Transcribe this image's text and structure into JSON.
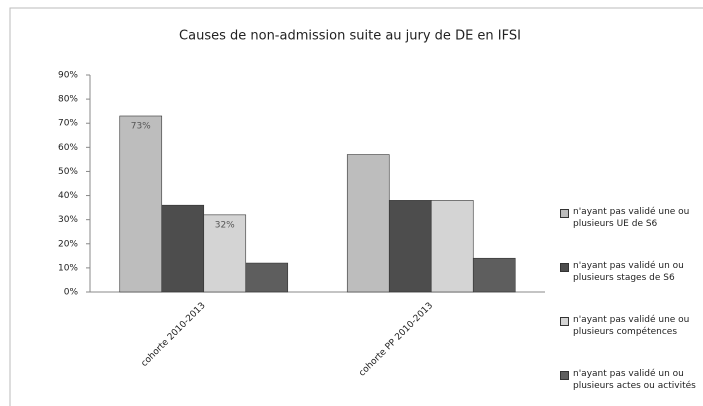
{
  "chart_data": {
    "type": "bar",
    "title": "Causes de non-admission suite au jury de DE en IFSI",
    "categories": [
      "cohorte 2010-2013",
      "cohorte PP 2010-2013"
    ],
    "series": [
      {
        "name": "n'ayant pas validé une ou plusieurs UE de S6",
        "color": "#bdbdbd",
        "values": [
          73,
          57
        ],
        "value_labels": [
          "73%",
          null
        ]
      },
      {
        "name": "n'ayant pas validé un ou plusieurs stages de S6",
        "color": "#4d4d4d",
        "values": [
          36,
          38
        ],
        "value_labels": [
          null,
          null
        ]
      },
      {
        "name": "n'ayant pas validé une ou plusieurs compétences",
        "color": "#d4d4d4",
        "values": [
          32,
          38
        ],
        "value_labels": [
          "32%",
          null
        ]
      },
      {
        "name": "n'ayant pas validé un ou plusieurs actes ou activités",
        "color": "#5e5e5e",
        "values": [
          12,
          14
        ],
        "value_labels": [
          null,
          null
        ]
      }
    ],
    "ylim": [
      0,
      90
    ],
    "yticks": [
      {
        "value": 0,
        "label": "0%"
      },
      {
        "value": 10,
        "label": "10%"
      },
      {
        "value": 20,
        "label": "20%"
      },
      {
        "value": 30,
        "label": "30%"
      },
      {
        "value": 40,
        "label": "40%"
      },
      {
        "value": 50,
        "label": "50%"
      },
      {
        "value": 60,
        "label": "60%"
      },
      {
        "value": 70,
        "label": "70%"
      },
      {
        "value": 80,
        "label": "80%"
      },
      {
        "value": 90,
        "label": "90%"
      }
    ],
    "legend": "right"
  }
}
